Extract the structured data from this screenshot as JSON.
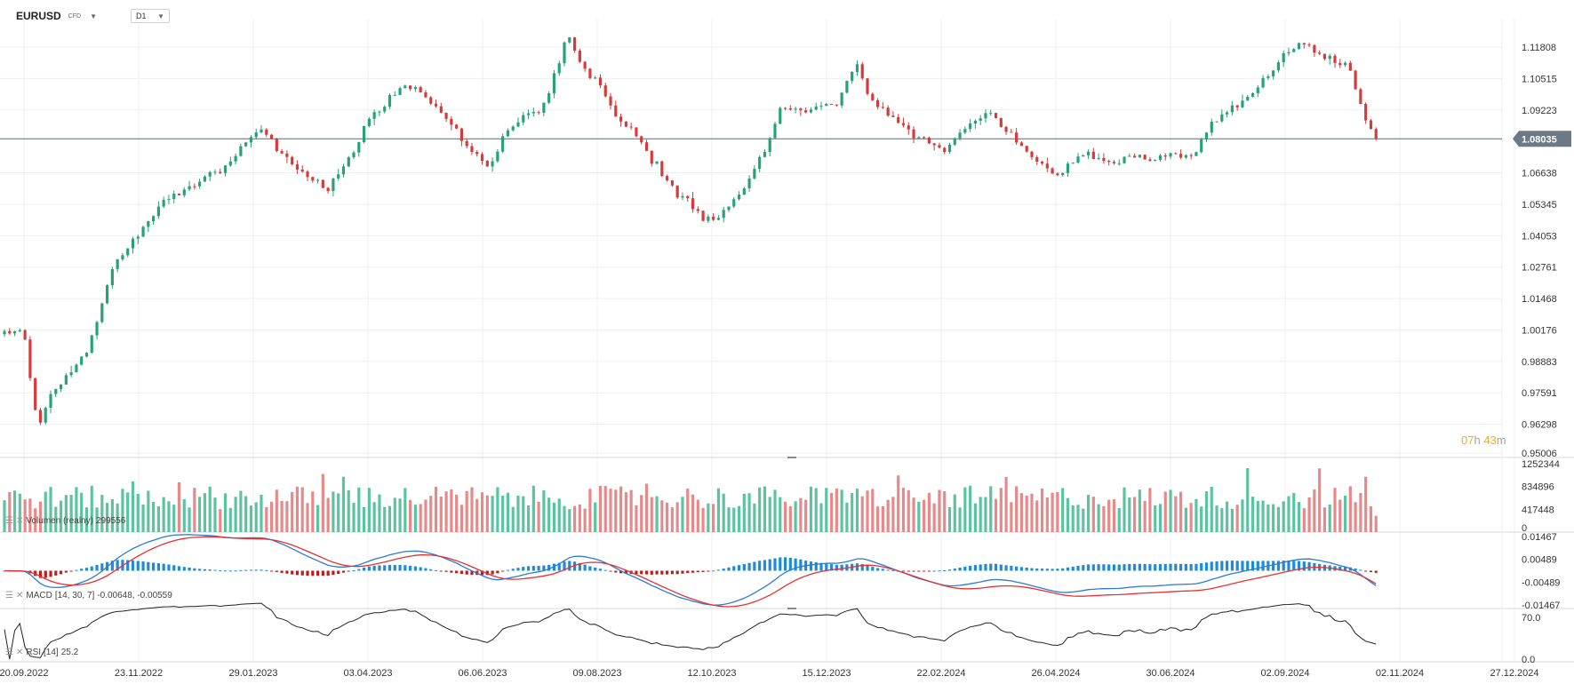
{
  "header": {
    "symbol": "EURUSD",
    "instrument_type": "CFD",
    "timeframe": "D1"
  },
  "last_price_label": "1.08035",
  "countdown": {
    "hours": "07",
    "hours_unit": "h",
    "minutes": "43",
    "minutes_unit": "m"
  },
  "price_axis_ticks": [
    "1.11808",
    "1.10515",
    "1.09223",
    "1.08035",
    "1.06638",
    "1.05345",
    "1.04053",
    "1.02761",
    "1.01468",
    "1.00176",
    "0.98883",
    "0.97591",
    "0.96298",
    "0.95006"
  ],
  "volume_axis_ticks": [
    "1252344",
    "834896",
    "417448",
    "0"
  ],
  "macd_axis_ticks": [
    "0.01467",
    "0.00489",
    "-0.00489",
    "-0.01467"
  ],
  "rsi_axis_ticks": [
    "70.0",
    "0.0"
  ],
  "volume_label": {
    "name": "Volumen (realny)",
    "value": "299556"
  },
  "macd_label": {
    "name": "MACD",
    "params": "[14, 30, 7]",
    "values": "-0.00648, -0.00559"
  },
  "rsi_label": {
    "name": "RSI",
    "params": "[14]",
    "value": "25.2"
  },
  "colors": {
    "up": "#26a17b",
    "down": "#d63a3a",
    "volume_up": "#5cc3a0",
    "volume_down": "#e88989",
    "macd_hist_pos": "#1c8cd9",
    "macd_hist_neg": "#c11a1a",
    "macd_line": "#2b7bd6",
    "signal_line": "#e83030",
    "rsi_line": "#222222",
    "last_price_bg": "#6d7a85",
    "grid": "#eceff2"
  },
  "icons": {
    "menu": "hamburger-icon",
    "close": "close-x-icon"
  },
  "chart_data": [
    {
      "type": "candlestick",
      "title": "EURUSD",
      "timeframe": "D1",
      "x_tick_labels": [
        "20.09.2022",
        "23.11.2022",
        "29.01.2023",
        "03.04.2023",
        "06.06.2023",
        "09.08.2023",
        "12.10.2023",
        "15.12.2023",
        "22.02.2024",
        "26.04.2024",
        "30.06.2024",
        "02.09.2024",
        "02.11.2024",
        "27.12.2024"
      ],
      "ylim": [
        0.95006,
        1.12
      ],
      "last_price": 1.08035,
      "close_path": {
        "dates": [
          "20.09.2022",
          "28.09.2022",
          "05.10.2022",
          "26.10.2022",
          "11.11.2022",
          "23.11.2022",
          "05.12.2022",
          "06.01.2023",
          "29.01.2023",
          "15.02.2023",
          "08.03.2023",
          "15.03.2023",
          "03.04.2023",
          "26.04.2023",
          "31.05.2023",
          "06.06.2023",
          "15.06.2023",
          "05.07.2023",
          "18.07.2023",
          "20.07.2023",
          "09.08.2023",
          "05.09.2023",
          "12.10.2023",
          "03.10.2023",
          "25.10.2023",
          "15.11.2023",
          "15.12.2023",
          "28.12.2023",
          "05.01.2024",
          "22.02.2024",
          "15.02.2024",
          "08.03.2024",
          "26.04.2024",
          "16.04.2024",
          "30.06.2024",
          "14.06.2024",
          "18.07.2024",
          "05.08.2024",
          "02.09.2024",
          "23.08.2024",
          "25.09.2024",
          "11.10.2024"
        ],
        "close": [
          1.0,
          0.962,
          0.975,
          0.995,
          1.03,
          1.04,
          1.055,
          1.065,
          1.085,
          1.068,
          1.06,
          1.068,
          1.092,
          1.102,
          1.072,
          1.07,
          1.085,
          1.095,
          1.118,
          1.122,
          1.098,
          1.072,
          1.05,
          1.048,
          1.058,
          1.09,
          1.095,
          1.11,
          1.095,
          1.082,
          1.075,
          1.093,
          1.072,
          1.062,
          1.071,
          1.072,
          1.092,
          1.1,
          1.118,
          1.115,
          1.11,
          1.08
        ]
      }
    },
    {
      "type": "bar",
      "name": "Volumen (realny)",
      "ylim": [
        0,
        1252344
      ],
      "last_value": 299556
    },
    {
      "type": "line",
      "name": "MACD",
      "params": [
        14,
        30,
        7
      ],
      "ylim": [
        -0.01467,
        0.01467
      ],
      "last_values": {
        "macd": -0.00648,
        "signal": -0.00559
      }
    },
    {
      "type": "line",
      "name": "RSI",
      "params": [
        14
      ],
      "ylim": [
        0,
        70
      ],
      "last_value": 25.2
    }
  ]
}
